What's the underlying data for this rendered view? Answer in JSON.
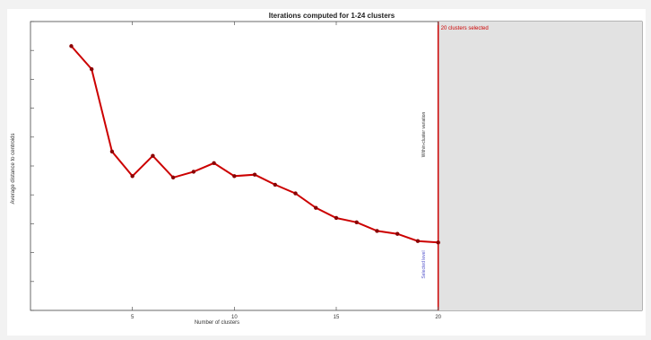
{
  "chart_data": {
    "type": "line",
    "title": "Iterations computed for 1-24 clusters",
    "xlabel": "Number of clusters",
    "ylabel": "Average distance to centroids",
    "xlim": [
      0,
      30
    ],
    "x_ticks": [
      5,
      10,
      15,
      20
    ],
    "x_tick_labels": [
      "5",
      "10",
      "15",
      "20"
    ],
    "grid": false,
    "series": [
      {
        "color": "#cc0000",
        "x": [
          2,
          3,
          4,
          5,
          6,
          7,
          8,
          9,
          10,
          11,
          12,
          13,
          14,
          15,
          16,
          17,
          18,
          19,
          20
        ],
        "y": [
          0.915,
          0.835,
          0.55,
          0.465,
          0.535,
          0.46,
          0.48,
          0.51,
          0.465,
          0.47,
          0.435,
          0.405,
          0.355,
          0.32,
          0.305,
          0.275,
          0.265,
          0.24,
          0.235
        ]
      }
    ],
    "annotation": {
      "x": 20,
      "label": "20 clusters selected",
      "color": "#cc0000",
      "shade_color": "#e2e2e2"
    },
    "secondary_axis": {
      "label": "Within-cluster variation",
      "label_color": "#333333",
      "lower_label": "Selected level",
      "lower_label_color": "#5555cc"
    }
  }
}
